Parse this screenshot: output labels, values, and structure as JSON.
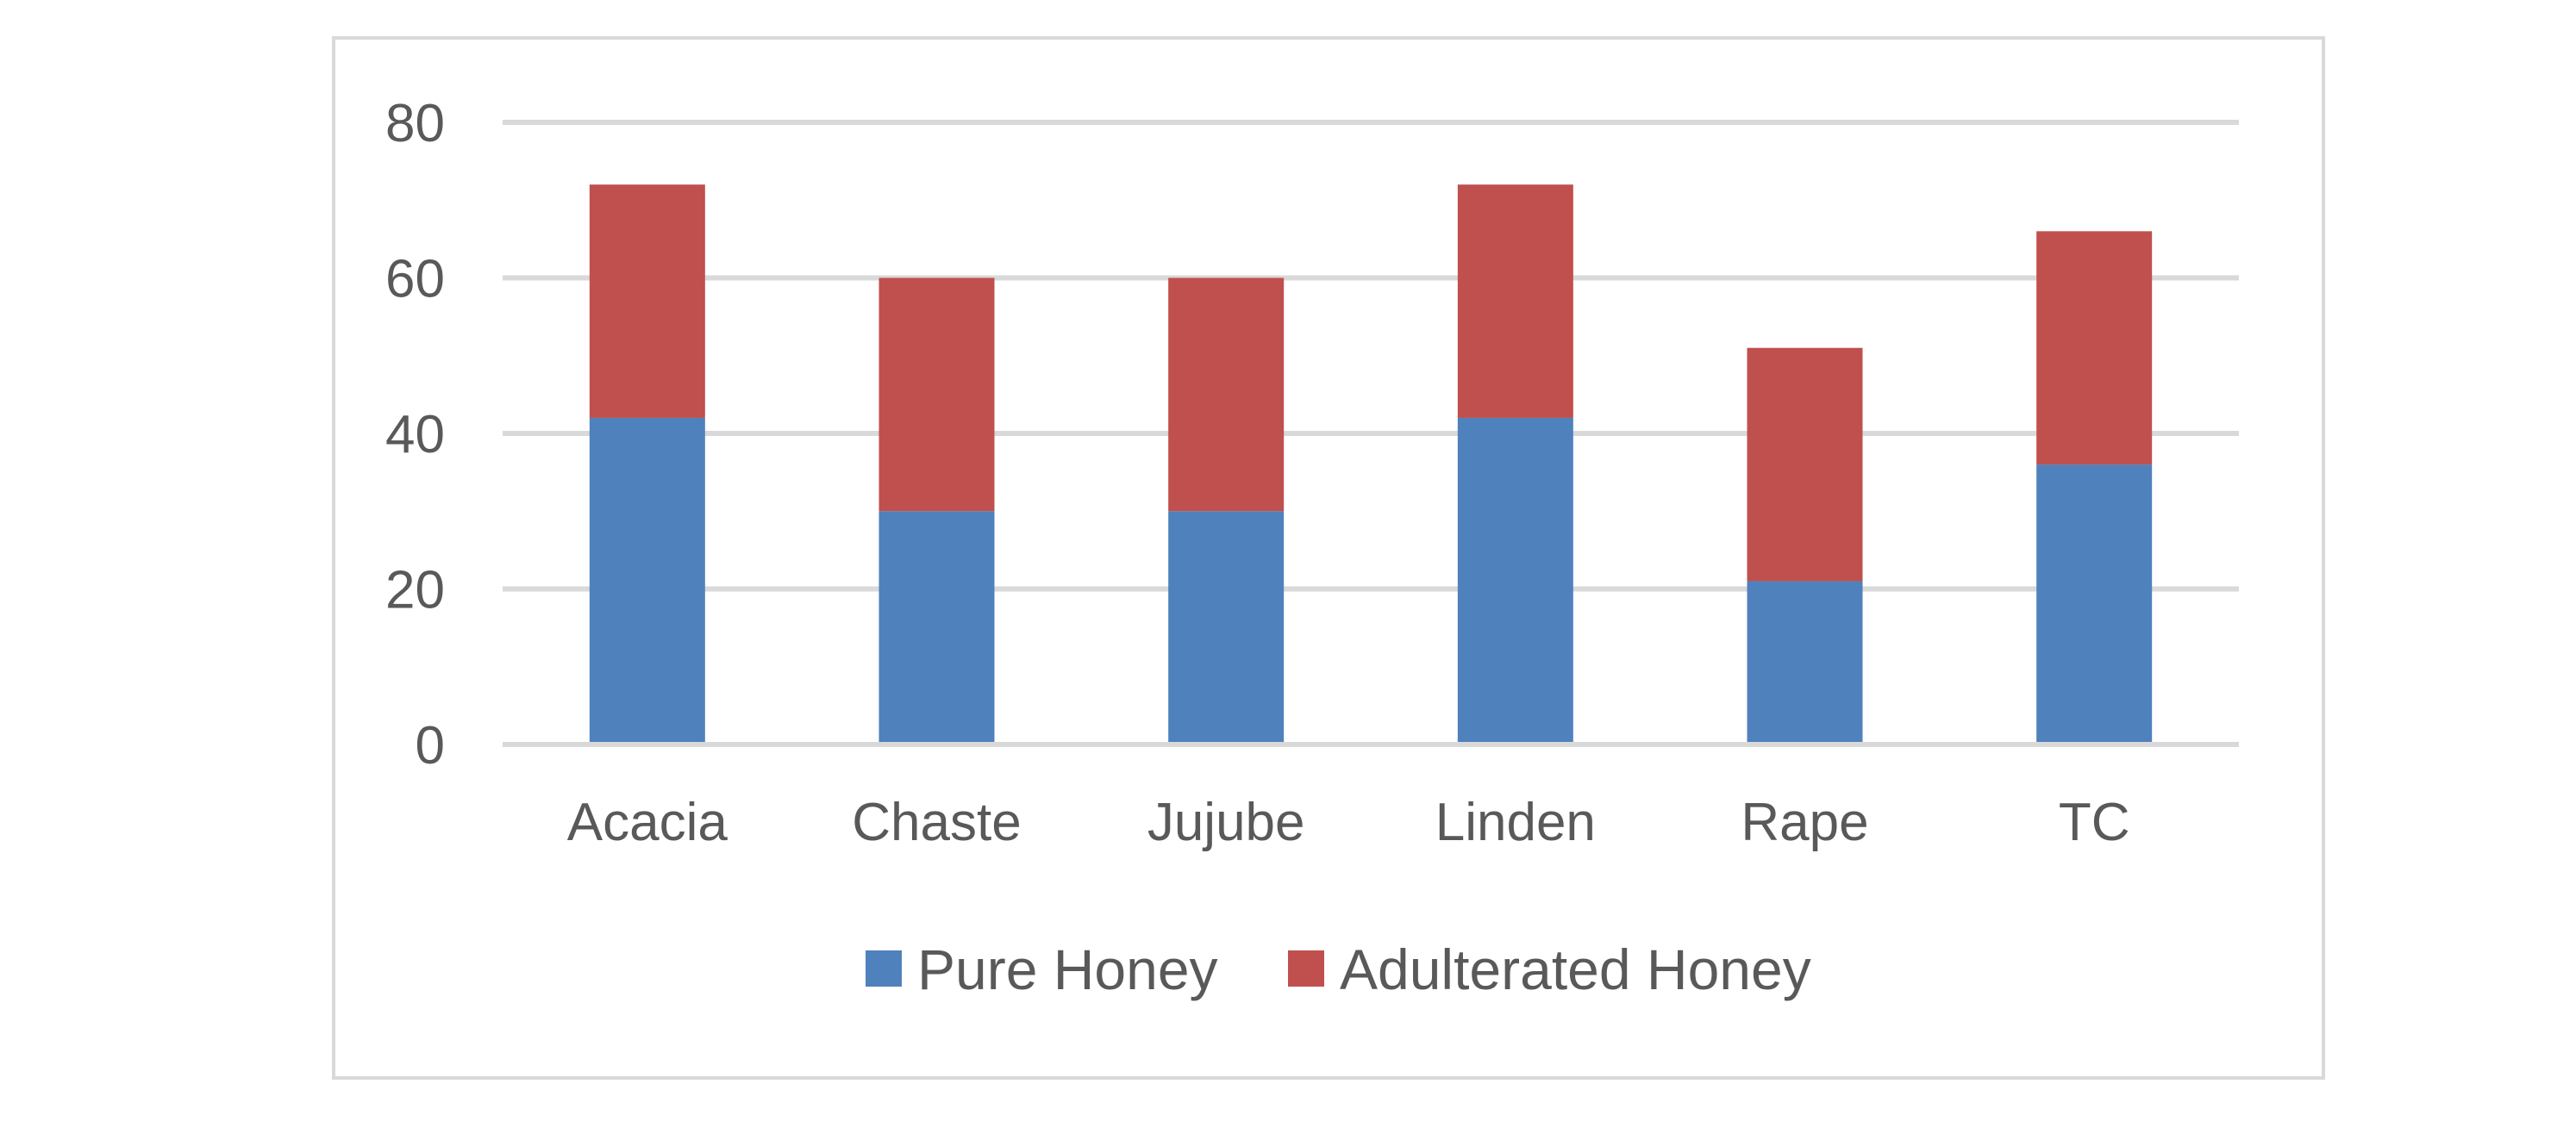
{
  "chart_data": {
    "type": "bar",
    "stacked": true,
    "categories": [
      "Acacia",
      "Chaste",
      "Jujube",
      "Linden",
      "Rape",
      "TC"
    ],
    "series": [
      {
        "name": "Pure Honey",
        "color": "#4f81bd",
        "values": [
          42,
          30,
          30,
          42,
          21,
          36
        ]
      },
      {
        "name": "Adulterated Honey",
        "color": "#c0504d",
        "values": [
          30,
          30,
          30,
          30,
          30,
          30
        ]
      }
    ],
    "yticks": [
      0,
      20,
      40,
      60,
      80
    ],
    "ylim": [
      0,
      80
    ],
    "grid": true,
    "legend_position": "bottom"
  }
}
